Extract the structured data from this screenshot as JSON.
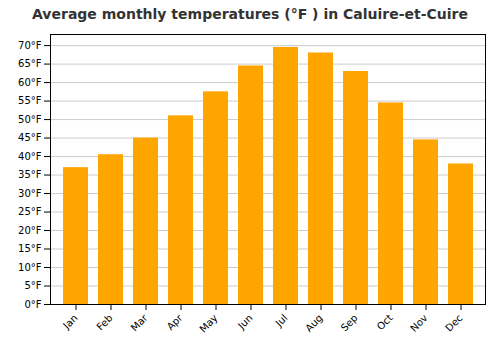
{
  "chart_data": {
    "type": "bar",
    "title": "Average monthly temperatures (°F ) in Caluire-et-Cuire",
    "categories": [
      "Jan",
      "Feb",
      "Mar",
      "Apr",
      "May",
      "Jun",
      "Jul",
      "Aug",
      "Sep",
      "Oct",
      "Nov",
      "Dec"
    ],
    "values": [
      37,
      40.5,
      45,
      51,
      57.5,
      64.5,
      69.5,
      68,
      63,
      54.5,
      44.5,
      38
    ],
    "color": "#FFA500",
    "ylim": [
      0,
      73
    ],
    "yticks": [
      {
        "value": 0,
        "label": "0°F"
      },
      {
        "value": 5,
        "label": "5°F"
      },
      {
        "value": 10,
        "label": "10°F"
      },
      {
        "value": 15,
        "label": "15°F"
      },
      {
        "value": 20,
        "label": "20°F"
      },
      {
        "value": 25,
        "label": "25°F"
      },
      {
        "value": 30,
        "label": "30°F"
      },
      {
        "value": 35,
        "label": "35°F"
      },
      {
        "value": 40,
        "label": "40°F"
      },
      {
        "value": 45,
        "label": "45°F"
      },
      {
        "value": 50,
        "label": "50°F"
      },
      {
        "value": 55,
        "label": "55°F"
      },
      {
        "value": 60,
        "label": "60°F"
      },
      {
        "value": 65,
        "label": "65°F"
      },
      {
        "value": 70,
        "label": "70°F"
      }
    ],
    "grid": true
  }
}
